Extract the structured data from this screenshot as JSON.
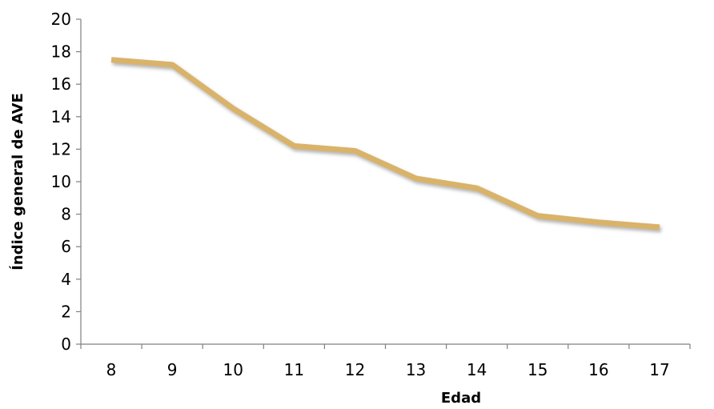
{
  "chart_data": {
    "type": "line",
    "title": "",
    "xlabel": "Edad",
    "ylabel": "Índice general de AVE",
    "categories": [
      "8",
      "9",
      "10",
      "11",
      "12",
      "13",
      "14",
      "15",
      "16",
      "17"
    ],
    "series": [
      {
        "values": [
          17.5,
          17.2,
          14.5,
          12.2,
          11.9,
          10.2,
          9.6,
          7.9,
          7.5,
          7.2
        ],
        "color": "#D9B36A"
      }
    ],
    "ylim": [
      0,
      20
    ],
    "yticks": [
      "0",
      "2",
      "4",
      "6",
      "8",
      "10",
      "12",
      "14",
      "16",
      "18",
      "20"
    ],
    "grid": false,
    "legend": "none",
    "axis_color": "#808080",
    "shadow_color": "#9a9a9a"
  }
}
